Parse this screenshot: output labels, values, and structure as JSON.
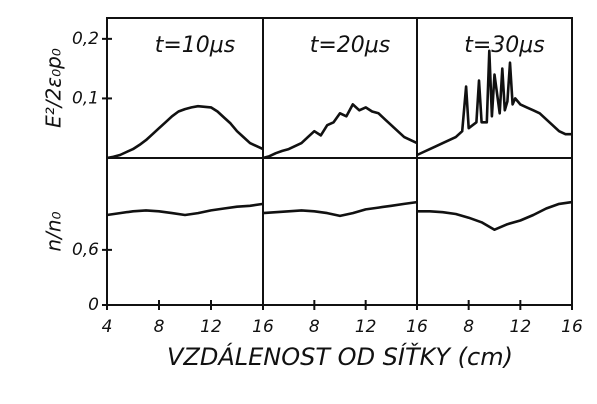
{
  "chart_data": [
    {
      "type": "line",
      "title": "t=10μs",
      "y_label": "E²/2ε₀p₀",
      "x": [
        4,
        4.5,
        5,
        5.5,
        6,
        6.5,
        7,
        7.5,
        8,
        8.5,
        9,
        9.5,
        10,
        10.5,
        11,
        11.5,
        12,
        12.5,
        13,
        13.5,
        14,
        14.5,
        15,
        15.5,
        16
      ],
      "values": [
        0.0,
        0.002,
        0.005,
        0.01,
        0.015,
        0.022,
        0.03,
        0.04,
        0.05,
        0.06,
        0.07,
        0.078,
        0.082,
        0.085,
        0.087,
        0.086,
        0.085,
        0.078,
        0.068,
        0.058,
        0.045,
        0.035,
        0.025,
        0.02,
        0.015
      ],
      "xlim": [
        4,
        16
      ],
      "ylim": [
        0,
        0.235
      ],
      "yticks": [
        {
          "value": 0.1,
          "label": "0,1"
        },
        {
          "value": 0.2,
          "label": "0,2"
        }
      ]
    },
    {
      "type": "line",
      "title": "t=20μs",
      "x": [
        4,
        4.5,
        5,
        5.5,
        6,
        6.5,
        7,
        7.5,
        8,
        8.5,
        9,
        9.5,
        10,
        10.5,
        11,
        11.5,
        12,
        12.5,
        13,
        13.5,
        14,
        14.5,
        15,
        15.5,
        16
      ],
      "values": [
        0.0,
        0.003,
        0.008,
        0.012,
        0.015,
        0.02,
        0.025,
        0.035,
        0.045,
        0.038,
        0.055,
        0.06,
        0.075,
        0.07,
        0.09,
        0.08,
        0.085,
        0.078,
        0.075,
        0.065,
        0.055,
        0.045,
        0.035,
        0.03,
        0.025
      ],
      "xlim": [
        4,
        16
      ],
      "ylim": [
        0,
        0.235
      ]
    },
    {
      "type": "line",
      "title": "t=30μs",
      "x": [
        4,
        4.5,
        5,
        5.5,
        6,
        6.5,
        7,
        7.5,
        7.8,
        8,
        8.6,
        8.8,
        9,
        9.4,
        9.6,
        9.8,
        10,
        10.4,
        10.6,
        10.8,
        11,
        11.2,
        11.4,
        11.6,
        12,
        12.5,
        13,
        13.5,
        14,
        14.5,
        15,
        15.5,
        16
      ],
      "values": [
        0.005,
        0.01,
        0.015,
        0.02,
        0.025,
        0.03,
        0.035,
        0.045,
        0.12,
        0.05,
        0.06,
        0.13,
        0.06,
        0.06,
        0.18,
        0.07,
        0.14,
        0.075,
        0.15,
        0.08,
        0.095,
        0.16,
        0.09,
        0.1,
        0.09,
        0.085,
        0.08,
        0.075,
        0.065,
        0.055,
        0.045,
        0.04,
        0.04
      ],
      "xlim": [
        4,
        16
      ],
      "ylim": [
        0,
        0.235
      ]
    },
    {
      "type": "line",
      "y_label": "n/n₀",
      "x": [
        4,
        5,
        6,
        7,
        8,
        9,
        10,
        11,
        12,
        13,
        14,
        15,
        16
      ],
      "values": [
        0.98,
        1.0,
        1.02,
        1.03,
        1.02,
        1.0,
        0.98,
        1.0,
        1.03,
        1.05,
        1.07,
        1.08,
        1.1
      ],
      "xlim": [
        4,
        16
      ],
      "ylim": [
        0,
        1.6
      ],
      "xticks": [
        4,
        8,
        12,
        16
      ],
      "yticks": [
        0,
        {
          "value": 0.6,
          "label": "0,6"
        }
      ]
    },
    {
      "type": "line",
      "x_label": "VZDÁLENOST OD SÍŤKY (cm)",
      "x": [
        4,
        5,
        6,
        7,
        8,
        9,
        10,
        11,
        12,
        13,
        14,
        15,
        16
      ],
      "values": [
        1.0,
        1.01,
        1.02,
        1.03,
        1.02,
        1.0,
        0.97,
        1.0,
        1.04,
        1.06,
        1.08,
        1.1,
        1.12
      ],
      "xlim": [
        4,
        16
      ],
      "ylim": [
        0,
        1.6
      ],
      "xticks": [
        8,
        12,
        16
      ]
    },
    {
      "type": "line",
      "x": [
        4,
        5,
        6,
        7,
        8,
        9,
        10,
        11,
        12,
        13,
        14,
        15,
        16
      ],
      "values": [
        1.02,
        1.02,
        1.01,
        0.99,
        0.95,
        0.9,
        0.82,
        0.88,
        0.92,
        0.98,
        1.05,
        1.1,
        1.12
      ],
      "xlim": [
        4,
        16
      ],
      "ylim": [
        0,
        1.6
      ],
      "xticks": [
        8,
        12,
        16
      ]
    }
  ]
}
